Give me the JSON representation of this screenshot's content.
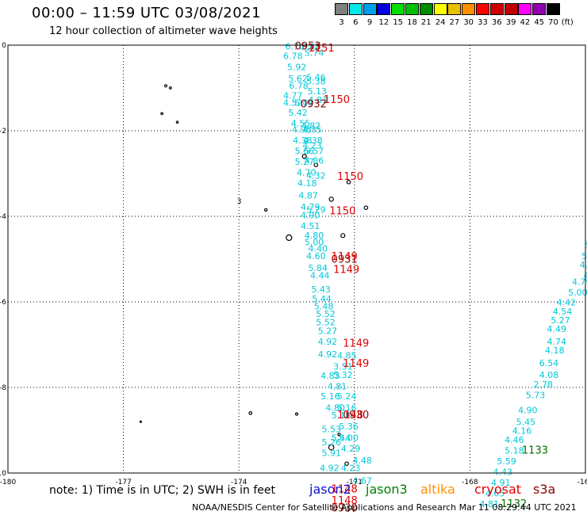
{
  "title": "00:00 – 11:59 UTC 03/08/2021",
  "subtitle": "12 hour collection of altimeter wave heights",
  "legend": [
    {
      "label": "3",
      "color": "#808080"
    },
    {
      "label": "6",
      "color": "#00e8e8"
    },
    {
      "label": "9",
      "color": "#00a0f0"
    },
    {
      "label": "12",
      "color": "#0000e0"
    },
    {
      "label": "15",
      "color": "#00e000"
    },
    {
      "label": "18",
      "color": "#00c000"
    },
    {
      "label": "21",
      "color": "#008c00"
    },
    {
      "label": "24",
      "color": "#ffff00"
    },
    {
      "label": "27",
      "color": "#e8c000"
    },
    {
      "label": "30",
      "color": "#ff9000"
    },
    {
      "label": "33",
      "color": "#ff0000"
    },
    {
      "label": "36",
      "color": "#d00000"
    },
    {
      "label": "39",
      "color": "#c00000"
    },
    {
      "label": "42",
      "color": "#ff00ff"
    },
    {
      "label": "45",
      "color": "#9000b0"
    },
    {
      "label": "70",
      "color": "#000000"
    },
    {
      "label": "(ft)",
      "color": ""
    }
  ],
  "footer": {
    "note": "note: 1) Time is in UTC; 2) SWH is in feet",
    "missions": [
      {
        "name": "jason2",
        "color": "#1010d0"
      },
      {
        "name": "jason3",
        "color": "#008000"
      },
      {
        "name": "altika",
        "color": "#ff9000"
      },
      {
        "name": "cryosat",
        "color": "#e00000"
      },
      {
        "name": "s3a",
        "color": "#8b0000"
      }
    ],
    "credit": "NOAA/NESDIS Center for Satellite Applications and Research     Mar 11 08:29:44 UTC 2021"
  },
  "chart_data": {
    "type": "scatter",
    "xlim": [
      -180,
      -165
    ],
    "ylim": [
      -10,
      0
    ],
    "x_ticks": [
      "-180",
      "-177",
      "-174",
      "-171",
      "-168",
      "-165"
    ],
    "y_ticks": [
      "0",
      "-2",
      "-4",
      "-6",
      "-8",
      "-10"
    ],
    "grid": true,
    "colors": {
      "swh": "#00c8d8",
      "swh_alt": "#00b8b8",
      "cryosat": "#e00000",
      "s3a": "#8b0000",
      "jason3": "#007000",
      "land": "#000000"
    },
    "swh_labels": [
      {
        "x": -172.8,
        "y": -0.1,
        "t": "6.70"
      },
      {
        "x": -172.38,
        "y": -0.1,
        "t": "0.48"
      },
      {
        "x": -172.3,
        "y": -0.25,
        "t": "5.74"
      },
      {
        "x": -172.85,
        "y": -0.32,
        "t": "6.78"
      },
      {
        "x": -172.75,
        "y": -0.58,
        "t": "5.92"
      },
      {
        "x": -172.72,
        "y": -0.85,
        "t": "5.62"
      },
      {
        "x": -172.25,
        "y": -0.82,
        "t": "5.46"
      },
      {
        "x": -172.25,
        "y": -0.92,
        "t": "5.38"
      },
      {
        "x": -172.7,
        "y": -1.02,
        "t": "6.78"
      },
      {
        "x": -172.22,
        "y": -1.15,
        "t": "5.13"
      },
      {
        "x": -172.85,
        "y": -1.25,
        "t": "4.77"
      },
      {
        "x": -172.2,
        "y": -1.35,
        "t": "4.83"
      },
      {
        "x": -172.85,
        "y": -1.42,
        "t": "4.52"
      },
      {
        "x": -172.56,
        "y": -1.42,
        "t": "5.09"
      },
      {
        "x": -172.72,
        "y": -1.65,
        "t": "5.42"
      },
      {
        "x": -172.65,
        "y": -1.9,
        "t": "4.55"
      },
      {
        "x": -172.38,
        "y": -1.95,
        "t": "4.82"
      },
      {
        "x": -172.62,
        "y": -2.05,
        "t": "4.98"
      },
      {
        "x": -172.35,
        "y": -2.05,
        "t": "4.35"
      },
      {
        "x": -172.6,
        "y": -2.3,
        "t": "4.38"
      },
      {
        "x": -172.33,
        "y": -2.3,
        "t": "4.38"
      },
      {
        "x": -172.35,
        "y": -2.42,
        "t": "4.23"
      },
      {
        "x": -172.55,
        "y": -2.55,
        "t": "5.66"
      },
      {
        "x": -172.3,
        "y": -2.55,
        "t": "5.57"
      },
      {
        "x": -172.55,
        "y": -2.8,
        "t": "5.27"
      },
      {
        "x": -172.3,
        "y": -2.77,
        "t": "4.86"
      },
      {
        "x": -172.5,
        "y": -3.05,
        "t": "4.70"
      },
      {
        "x": -172.25,
        "y": -3.12,
        "t": "4.32"
      },
      {
        "x": -172.48,
        "y": -3.3,
        "t": "4.18"
      },
      {
        "x": -172.45,
        "y": -3.58,
        "t": "4.87"
      },
      {
        "x": -172.4,
        "y": -3.85,
        "t": "4.79"
      },
      {
        "x": -172.25,
        "y": -3.92,
        "t": "5.29"
      },
      {
        "x": -172.4,
        "y": -4.05,
        "t": "4.90"
      },
      {
        "x": -172.4,
        "y": -4.3,
        "t": "4.51"
      },
      {
        "x": -172.3,
        "y": -4.52,
        "t": "4.80"
      },
      {
        "x": -172.3,
        "y": -4.68,
        "t": "5.00"
      },
      {
        "x": -172.2,
        "y": -4.82,
        "t": "4.40"
      },
      {
        "x": -172.25,
        "y": -5.0,
        "t": "4.60"
      },
      {
        "x": -172.2,
        "y": -5.28,
        "t": "5.84"
      },
      {
        "x": -172.15,
        "y": -5.45,
        "t": "4.44"
      },
      {
        "x": -172.12,
        "y": -5.78,
        "t": "5.43"
      },
      {
        "x": -172.1,
        "y": -6.0,
        "t": "5.44"
      },
      {
        "x": -172.05,
        "y": -6.18,
        "t": "5.48"
      },
      {
        "x": -172.0,
        "y": -6.35,
        "t": "5.52"
      },
      {
        "x": -172.0,
        "y": -6.55,
        "t": "5.52"
      },
      {
        "x": -171.95,
        "y": -6.75,
        "t": "5.27"
      },
      {
        "x": -171.95,
        "y": -7.0,
        "t": "4.92"
      },
      {
        "x": -171.95,
        "y": -7.3,
        "t": "4.92"
      },
      {
        "x": -171.45,
        "y": -7.32,
        "t": "4.85"
      },
      {
        "x": -171.55,
        "y": -7.58,
        "t": "3.51"
      },
      {
        "x": -171.88,
        "y": -7.8,
        "t": "4.83"
      },
      {
        "x": -171.55,
        "y": -7.78,
        "t": "5.32"
      },
      {
        "x": -171.7,
        "y": -8.05,
        "t": "4.81"
      },
      {
        "x": -171.88,
        "y": -8.28,
        "t": "5.16"
      },
      {
        "x": -171.45,
        "y": -8.28,
        "t": "5.24"
      },
      {
        "x": -171.75,
        "y": -8.55,
        "t": "4.80"
      },
      {
        "x": -171.45,
        "y": -8.55,
        "t": "5.16"
      },
      {
        "x": -171.6,
        "y": -8.72,
        "t": "5.18"
      },
      {
        "x": -171.4,
        "y": -8.98,
        "t": "5.36"
      },
      {
        "x": -171.85,
        "y": -9.05,
        "t": "5.53"
      },
      {
        "x": -171.6,
        "y": -9.25,
        "t": "5.44"
      },
      {
        "x": -171.4,
        "y": -9.25,
        "t": "5.00"
      },
      {
        "x": -171.85,
        "y": -9.35,
        "t": "5.26"
      },
      {
        "x": -171.35,
        "y": -9.5,
        "t": "4.29"
      },
      {
        "x": -171.85,
        "y": -9.6,
        "t": "5.91"
      },
      {
        "x": -171.05,
        "y": -9.78,
        "t": "4.48"
      },
      {
        "x": -171.9,
        "y": -9.95,
        "t": "4.92"
      },
      {
        "x": -171.35,
        "y": -9.95,
        "t": "4.23"
      },
      {
        "x": -171.05,
        "y": -10.25,
        "t": "4.67"
      },
      {
        "x": -164.9,
        "y": -3.95,
        "t": "4.53"
      },
      {
        "x": -164.8,
        "y": -4.2,
        "t": "4.7"
      },
      {
        "x": -164.9,
        "y": -4.5,
        "t": "4.7"
      },
      {
        "x": -165.0,
        "y": -4.75,
        "t": "5.16"
      },
      {
        "x": -165.1,
        "y": -5.0,
        "t": "5.22"
      },
      {
        "x": -165.15,
        "y": -5.2,
        "t": "4.82"
      },
      {
        "x": -165.05,
        "y": -5.45,
        "t": "4.74"
      },
      {
        "x": -165.35,
        "y": -5.6,
        "t": "4.79"
      },
      {
        "x": -165.45,
        "y": -5.85,
        "t": "5.00"
      },
      {
        "x": -165.75,
        "y": -6.08,
        "t": "4.42"
      },
      {
        "x": -165.85,
        "y": -6.3,
        "t": "4.54"
      },
      {
        "x": -165.9,
        "y": -6.5,
        "t": "5.27"
      },
      {
        "x": -166.0,
        "y": -6.7,
        "t": "4.49"
      },
      {
        "x": -166.0,
        "y": -7.0,
        "t": "4.74"
      },
      {
        "x": -166.05,
        "y": -7.2,
        "t": "4.18"
      },
      {
        "x": -166.2,
        "y": -7.5,
        "t": "6.54"
      },
      {
        "x": -166.2,
        "y": -7.78,
        "t": "4.08"
      },
      {
        "x": -166.35,
        "y": -8.0,
        "t": "2.78"
      },
      {
        "x": -166.55,
        "y": -8.25,
        "t": "5.73"
      },
      {
        "x": -166.75,
        "y": -8.6,
        "t": "4.90"
      },
      {
        "x": -166.8,
        "y": -8.88,
        "t": "5.45"
      },
      {
        "x": -166.9,
        "y": -9.08,
        "t": "4.16"
      },
      {
        "x": -167.1,
        "y": -9.3,
        "t": "4.46"
      },
      {
        "x": -167.1,
        "y": -9.55,
        "t": "5.18"
      },
      {
        "x": -167.3,
        "y": -9.8,
        "t": "5.59"
      },
      {
        "x": -167.4,
        "y": -10.05,
        "t": "4.43"
      },
      {
        "x": -167.45,
        "y": -10.3,
        "t": "4.91"
      },
      {
        "x": -167.6,
        "y": -10.55,
        "t": "4.65"
      },
      {
        "x": -167.75,
        "y": -10.8,
        "t": "4.81"
      }
    ],
    "time_labels": [
      {
        "x": -172.55,
        "y": -0.1,
        "t": "0953",
        "s": "s3a"
      },
      {
        "x": -172.2,
        "y": -0.15,
        "t": "1151",
        "s": "cryosat"
      },
      {
        "x": -172.4,
        "y": -1.45,
        "t": "0932",
        "s": "s3a"
      },
      {
        "x": -171.8,
        "y": -1.35,
        "t": "1150",
        "s": "cryosat"
      },
      {
        "x": -171.45,
        "y": -3.15,
        "t": "1150",
        "s": "cryosat"
      },
      {
        "x": -171.65,
        "y": -3.95,
        "t": "1150",
        "s": "cryosat"
      },
      {
        "x": -171.6,
        "y": -5.08,
        "t": "0931",
        "s": "s3a"
      },
      {
        "x": -171.6,
        "y": -5.02,
        "t": "1149",
        "s": "cryosat"
      },
      {
        "x": -171.55,
        "y": -5.32,
        "t": "1149",
        "s": "cryosat"
      },
      {
        "x": -171.3,
        "y": -7.05,
        "t": "1149",
        "s": "cryosat"
      },
      {
        "x": -171.3,
        "y": -7.52,
        "t": "1149",
        "s": "cryosat"
      },
      {
        "x": -171.3,
        "y": -8.72,
        "t": "0930",
        "s": "s3a"
      },
      {
        "x": -171.45,
        "y": -8.72,
        "t": "1148",
        "s": "cryosat"
      },
      {
        "x": -171.6,
        "y": -10.45,
        "t": "1148",
        "s": "cryosat"
      },
      {
        "x": -171.6,
        "y": -10.72,
        "t": "1148",
        "s": "cryosat"
      },
      {
        "x": -171.6,
        "y": -10.9,
        "t": "0930",
        "s": "s3a"
      },
      {
        "x": -166.65,
        "y": -9.55,
        "t": "1133",
        "s": "jason3"
      },
      {
        "x": -167.2,
        "y": -10.8,
        "t": "1132",
        "s": "jason3"
      },
      {
        "x": -164.7,
        "y": -6.25,
        "t": "1:",
        "s": "jason3"
      }
    ],
    "land_labels": [
      {
        "x": -174.05,
        "y": -3.7,
        "t": "3"
      }
    ]
  }
}
